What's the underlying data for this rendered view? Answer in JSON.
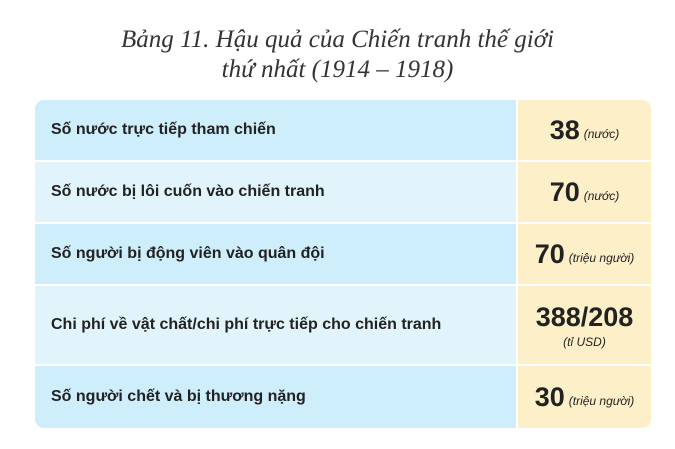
{
  "title_line1": "Bảng 11. Hậu quả của Chiến tranh thế giới",
  "title_line2": "thứ nhất (1914 – 1918)",
  "rows": [
    {
      "label": "Số nước trực tiếp tham chiến",
      "value": "38",
      "unit": "(nước)"
    },
    {
      "label": "Số nước bị lôi cuốn vào chiến tranh",
      "value": "70",
      "unit": "(nước)"
    },
    {
      "label": "Số người bị động viên vào quân đội",
      "value": "70",
      "unit": "(triệu người)"
    },
    {
      "label": "Chi phí về vật chất/chi phí trực tiếp cho chiến  tranh",
      "value": "388/208",
      "unit": "(tỉ USD)"
    },
    {
      "label": "Số người chết và bị thương nặng",
      "value": "30",
      "unit": "(triệu người)"
    }
  ]
}
